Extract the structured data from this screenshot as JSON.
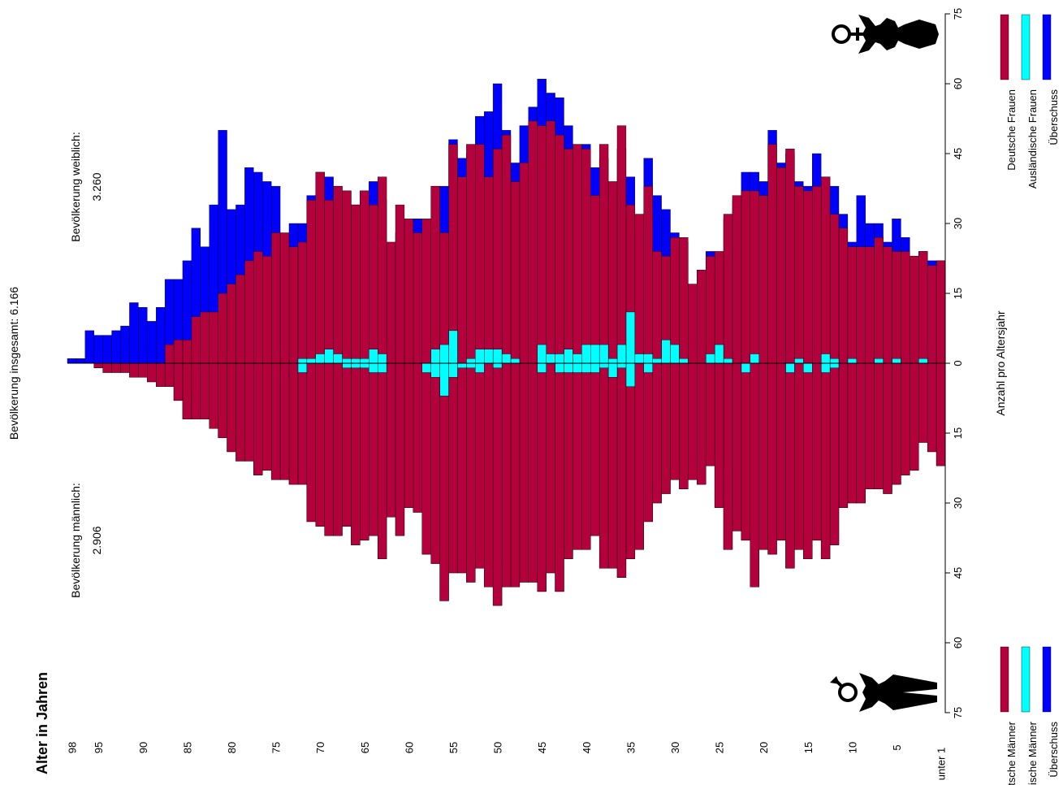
{
  "chart_data": {
    "type": "bar",
    "orientation": "population-pyramid (rotated 90° counter-clockwise)",
    "age_axis_label": "Alter in Jahren",
    "count_axis_label": "Anzahl pro Altersjahr",
    "total_label": "Bevölkerung insgesamt: 6.166",
    "female_label": "Bevölkerung weiblich:",
    "female_total": "3.260",
    "male_label": "Bevölkerung männlich:",
    "male_total": "2.906",
    "age_ticks": [
      "98",
      "95",
      "90",
      "85",
      "80",
      "75",
      "70",
      "65",
      "60",
      "55",
      "50",
      "45",
      "40",
      "35",
      "30",
      "25",
      "20",
      "15",
      "10",
      "5",
      "unter 1"
    ],
    "count_ticks": [
      "75",
      "60",
      "45",
      "30",
      "15",
      "0",
      "15",
      "30",
      "45",
      "60",
      "75"
    ],
    "count_range": [
      -75,
      75
    ],
    "age_range": [
      0,
      98
    ],
    "colors": {
      "german": "#b4003c",
      "foreign": "#00ffff",
      "surplus": "#0000ff",
      "frame": "#000000"
    },
    "legend_female": [
      {
        "label": "Deutsche Frauen",
        "color": "#b4003c"
      },
      {
        "label": "Ausländische Frauen",
        "color": "#00ffff"
      },
      {
        "label": "Überschuss",
        "color": "#0000ff"
      }
    ],
    "legend_male": [
      {
        "label": "Deutsche Männer",
        "color": "#b4003c"
      },
      {
        "label": "Ausländische Männer",
        "color": "#00ffff"
      },
      {
        "label": "Überschuss",
        "color": "#0000ff"
      }
    ],
    "ages": [
      0,
      1,
      2,
      3,
      4,
      5,
      6,
      7,
      8,
      9,
      10,
      11,
      12,
      13,
      14,
      15,
      16,
      17,
      18,
      19,
      20,
      21,
      22,
      23,
      24,
      25,
      26,
      27,
      28,
      29,
      30,
      31,
      32,
      33,
      34,
      35,
      36,
      37,
      38,
      39,
      40,
      41,
      42,
      43,
      44,
      45,
      46,
      47,
      48,
      49,
      50,
      51,
      52,
      53,
      54,
      55,
      56,
      57,
      58,
      59,
      60,
      61,
      62,
      63,
      64,
      65,
      66,
      67,
      68,
      69,
      70,
      71,
      72,
      73,
      74,
      75,
      76,
      77,
      78,
      79,
      80,
      81,
      82,
      83,
      84,
      85,
      86,
      87,
      88,
      89,
      90,
      91,
      92,
      93,
      94,
      95,
      96,
      97,
      98
    ],
    "female_total_per_age": [
      22,
      22,
      24,
      23,
      27,
      31,
      26,
      30,
      30,
      36,
      26,
      32,
      38,
      40,
      45,
      38,
      39,
      45,
      43,
      50,
      39,
      41,
      41,
      35,
      31,
      21,
      24,
      20,
      15,
      26,
      28,
      33,
      36,
      44,
      29,
      40,
      46,
      38,
      44,
      42,
      47,
      46,
      51,
      57,
      58,
      61,
      55,
      51,
      43,
      50,
      60,
      54,
      53,
      45,
      44,
      48,
      38,
      38,
      28,
      31,
      30,
      28,
      25,
      35,
      39,
      37,
      34,
      37,
      38,
      40,
      41,
      36,
      30,
      30,
      27,
      38,
      39,
      41,
      42,
      34,
      33,
      50,
      34,
      25,
      29,
      22,
      18,
      18,
      12,
      9,
      12,
      13,
      8,
      7,
      6,
      6,
      7,
      1,
      1
    ],
    "female_german_per_age": [
      22,
      21,
      24,
      23,
      24,
      24,
      25,
      27,
      25,
      25,
      25,
      29,
      32,
      40,
      38,
      37,
      38,
      46,
      42,
      47,
      36,
      37,
      37,
      36,
      32,
      24,
      23,
      20,
      17,
      27,
      27,
      23,
      24,
      38,
      32,
      34,
      51,
      39,
      47,
      36,
      46,
      47,
      46,
      49,
      52,
      51,
      52,
      43,
      39,
      49,
      46,
      40,
      47,
      47,
      40,
      47,
      28,
      38,
      31,
      28,
      31,
      34,
      26,
      40,
      34,
      37,
      34,
      37,
      38,
      35,
      41,
      35,
      26,
      25,
      28,
      28,
      23,
      24,
      22,
      19,
      17,
      15,
      11,
      11,
      10,
      5,
      5,
      4,
      0,
      0,
      0,
      0,
      0,
      0,
      0,
      0,
      0,
      0,
      0
    ],
    "female_foreign_per_age": [
      0,
      0,
      1,
      0,
      0,
      1,
      0,
      1,
      0,
      0,
      1,
      0,
      1,
      2,
      0,
      0,
      1,
      0,
      0,
      0,
      0,
      2,
      0,
      0,
      1,
      4,
      2,
      0,
      0,
      1,
      4,
      5,
      1,
      2,
      2,
      11,
      4,
      1,
      4,
      4,
      4,
      2,
      3,
      2,
      2,
      4,
      0,
      0,
      1,
      2,
      3,
      3,
      3,
      1,
      0,
      7,
      4,
      3,
      0,
      0,
      0,
      0,
      0,
      2,
      3,
      1,
      1,
      1,
      2,
      3,
      2,
      1,
      1,
      0,
      0,
      0,
      0,
      0,
      0,
      0,
      0,
      0,
      0,
      0,
      0,
      0,
      0,
      0,
      0,
      0,
      0,
      0,
      0,
      0,
      0,
      0,
      0,
      0,
      0
    ],
    "male_total_per_age": [
      22,
      19,
      17,
      23,
      24,
      26,
      28,
      27,
      27,
      30,
      30,
      31,
      39,
      42,
      38,
      42,
      40,
      44,
      38,
      41,
      40,
      48,
      38,
      36,
      40,
      31,
      22,
      26,
      25,
      27,
      25,
      28,
      30,
      34,
      40,
      42,
      46,
      44,
      44,
      37,
      40,
      40,
      42,
      49,
      45,
      49,
      47,
      47,
      48,
      48,
      52,
      48,
      44,
      47,
      45,
      45,
      51,
      43,
      41,
      32,
      31,
      37,
      33,
      42,
      37,
      38,
      39,
      35,
      37,
      37,
      35,
      34,
      26,
      26,
      25,
      25,
      23,
      24,
      21,
      21,
      19,
      16,
      14,
      12,
      12,
      12,
      8,
      5,
      5,
      4,
      3,
      3,
      2,
      2,
      2,
      1,
      0,
      0,
      0
    ],
    "male_german_per_age": [
      22,
      19,
      17,
      23,
      24,
      26,
      28,
      27,
      27,
      30,
      30,
      31,
      39,
      42,
      38,
      42,
      40,
      44,
      38,
      41,
      40,
      48,
      38,
      36,
      40,
      31,
      22,
      26,
      25,
      27,
      25,
      28,
      30,
      34,
      40,
      42,
      46,
      44,
      44,
      37,
      40,
      40,
      42,
      49,
      45,
      49,
      47,
      47,
      48,
      48,
      52,
      48,
      44,
      47,
      45,
      45,
      51,
      43,
      41,
      32,
      31,
      37,
      33,
      42,
      37,
      38,
      39,
      35,
      37,
      37,
      35,
      34,
      26,
      26,
      25,
      25,
      23,
      24,
      21,
      21,
      19,
      16,
      14,
      12,
      12,
      12,
      8,
      5,
      5,
      4,
      3,
      3,
      2,
      2,
      2,
      1,
      0,
      0,
      0
    ],
    "male_foreign_per_age": [
      0,
      0,
      0,
      0,
      0,
      0,
      0,
      0,
      0,
      0,
      0,
      0,
      1,
      2,
      0,
      2,
      0,
      2,
      0,
      0,
      0,
      0,
      2,
      0,
      0,
      0,
      0,
      0,
      0,
      0,
      0,
      0,
      0,
      2,
      0,
      5,
      1,
      3,
      1,
      2,
      2,
      2,
      2,
      2,
      0,
      2,
      0,
      0,
      0,
      0,
      1,
      0,
      2,
      1,
      1,
      3,
      7,
      3,
      2,
      0,
      0,
      0,
      0,
      2,
      2,
      1,
      1,
      1,
      0,
      0,
      0,
      0,
      2,
      0,
      0,
      0,
      0,
      0,
      0,
      0,
      0,
      0,
      0,
      0,
      0,
      0,
      0,
      0,
      0,
      0,
      0,
      0,
      0,
      0,
      0,
      0,
      0,
      0,
      0
    ]
  }
}
